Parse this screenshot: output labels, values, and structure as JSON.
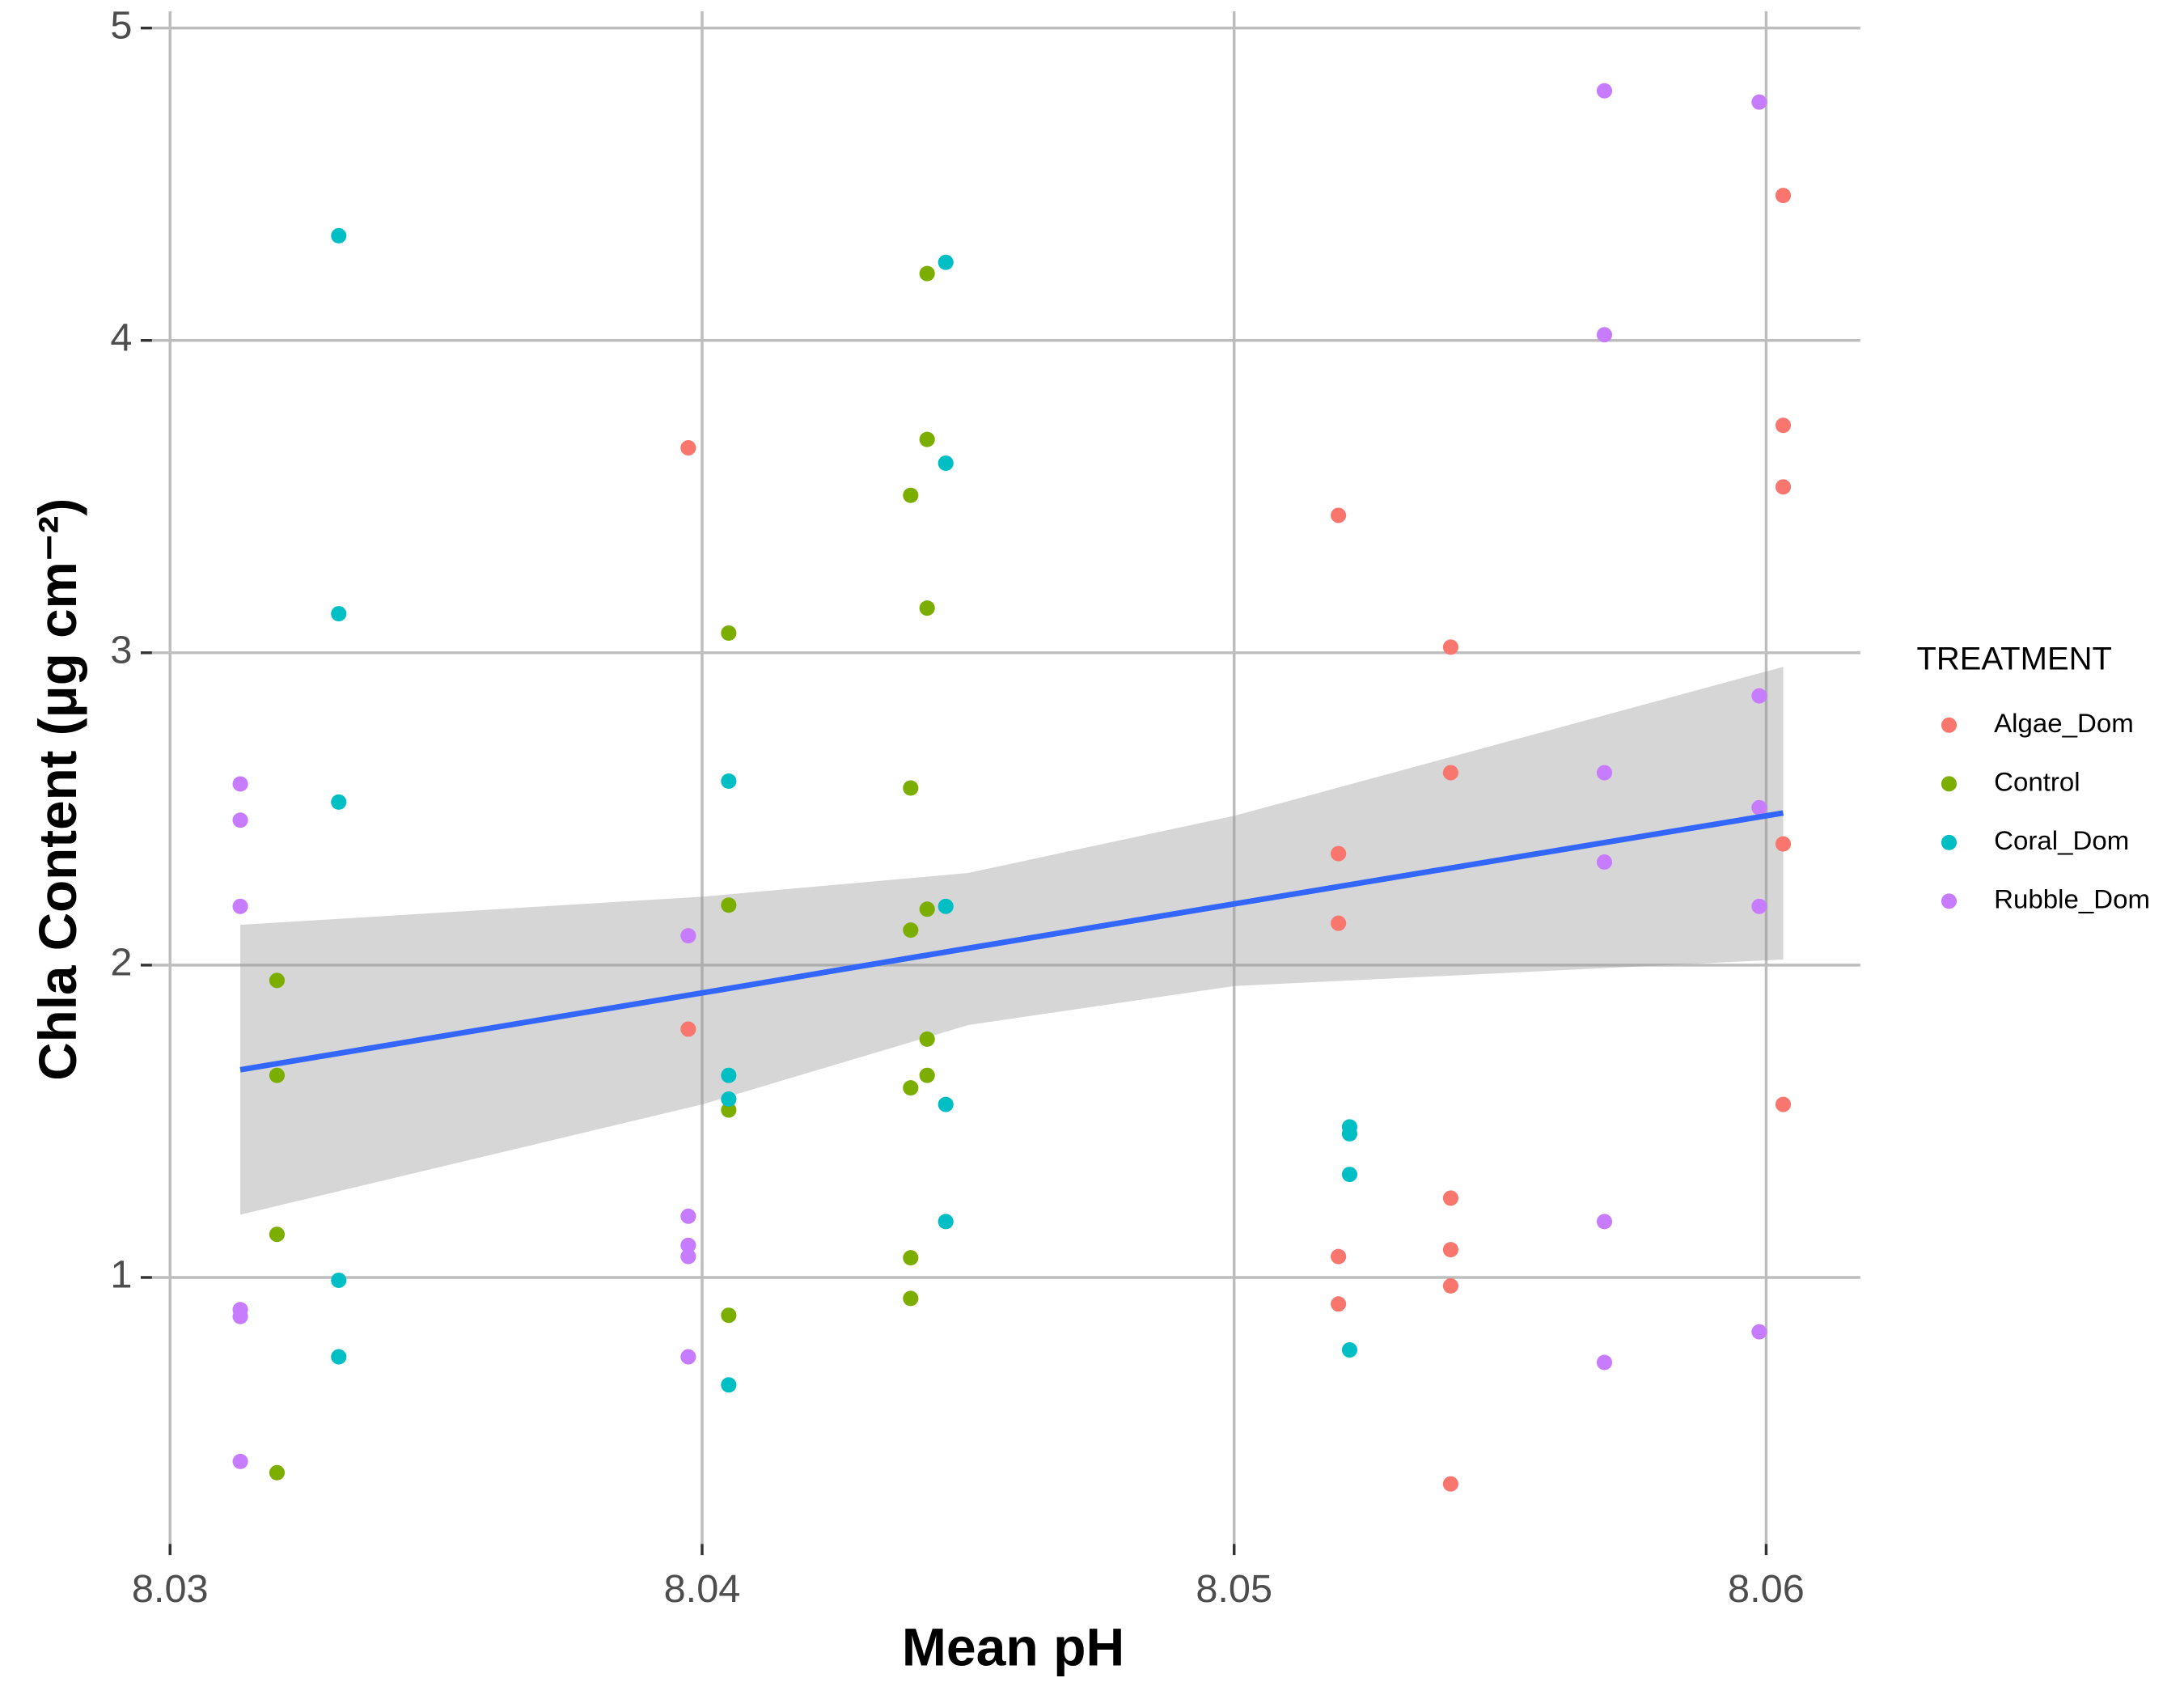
{
  "chart_data": {
    "type": "scatter",
    "x_label": "Mean pH",
    "y_label": "Chla Content (μg cm⁻²)",
    "legend_title": "TREATMENT",
    "legend_position": "right",
    "grid": true,
    "xlim": [
      8.02966,
      8.06177
    ],
    "ylim": [
      0.147,
      5.054
    ],
    "xticks": [
      8.03,
      8.04,
      8.05,
      8.06
    ],
    "yticks": [
      1,
      2,
      3,
      4,
      5
    ],
    "series": [
      {
        "name": "Algae_Dom",
        "color": "#F8766D",
        "x": [
          8.03974,
          8.03974,
          8.05196,
          8.05196,
          8.05196,
          8.05196,
          8.05196,
          8.05407,
          8.05407,
          8.05407,
          8.05407,
          8.05407,
          8.05407,
          8.06032,
          8.06032,
          8.06032,
          8.06032,
          8.06032
        ],
        "values": [
          3.656,
          1.795,
          3.44,
          2.357,
          2.134,
          1.067,
          0.915,
          3.018,
          2.616,
          1.254,
          1.089,
          0.973,
          0.339,
          4.464,
          3.728,
          3.531,
          2.388,
          1.554
        ]
      },
      {
        "name": "Control",
        "color": "#7CAE00",
        "x": [
          8.03201,
          8.03201,
          8.03201,
          8.03201,
          8.0405,
          8.0405,
          8.0405,
          8.0405,
          8.04392,
          8.04392,
          8.04392,
          8.04392,
          8.04392,
          8.04392,
          8.04423,
          8.04423,
          8.04423,
          8.04423,
          8.04423,
          8.04423
        ],
        "values": [
          1.951,
          1.647,
          1.138,
          0.375,
          3.063,
          2.192,
          1.536,
          0.879,
          3.504,
          2.567,
          2.112,
          1.607,
          1.063,
          0.933,
          4.214,
          3.683,
          3.143,
          2.179,
          1.763,
          1.647
        ]
      },
      {
        "name": "Coral_Dom",
        "color": "#00BFC4",
        "x": [
          8.03317,
          8.03317,
          8.03317,
          8.03317,
          8.03317,
          8.0405,
          8.0405,
          8.0405,
          8.0405,
          8.04458,
          8.04458,
          8.04458,
          8.04458,
          8.04458,
          8.05217,
          8.05217,
          8.05217,
          8.05217
        ],
        "values": [
          4.335,
          3.125,
          2.522,
          0.991,
          0.746,
          2.589,
          1.647,
          1.571,
          0.656,
          4.25,
          3.607,
          2.188,
          1.554,
          1.179,
          1.482,
          1.46,
          1.33,
          0.768
        ]
      },
      {
        "name": "Rubble_Dom",
        "color": "#C77CFF",
        "x": [
          8.03132,
          8.03132,
          8.03132,
          8.03132,
          8.03132,
          8.03132,
          8.03974,
          8.03974,
          8.03974,
          8.03974,
          8.03974,
          8.05696,
          8.05696,
          8.05696,
          8.05696,
          8.05696,
          8.05696,
          8.05987,
          8.05987,
          8.05987,
          8.05987,
          8.05987
        ],
        "values": [
          2.58,
          2.464,
          2.188,
          0.897,
          0.875,
          0.411,
          2.094,
          1.196,
          1.103,
          1.067,
          0.746,
          4.799,
          4.018,
          2.616,
          2.33,
          1.179,
          0.728,
          4.763,
          2.862,
          2.504,
          2.188,
          0.826
        ]
      }
    ],
    "smooth": {
      "color": "#3366FF",
      "band_color": "#999999",
      "x": [
        8.03132,
        8.04,
        8.045,
        8.05,
        8.06032
      ],
      "fit": [
        1.665,
        1.911,
        2.054,
        2.196,
        2.487
      ],
      "lower": [
        1.201,
        1.554,
        1.808,
        1.933,
        2.018
      ],
      "upper": [
        2.129,
        2.219,
        2.295,
        2.478,
        2.955
      ]
    }
  }
}
